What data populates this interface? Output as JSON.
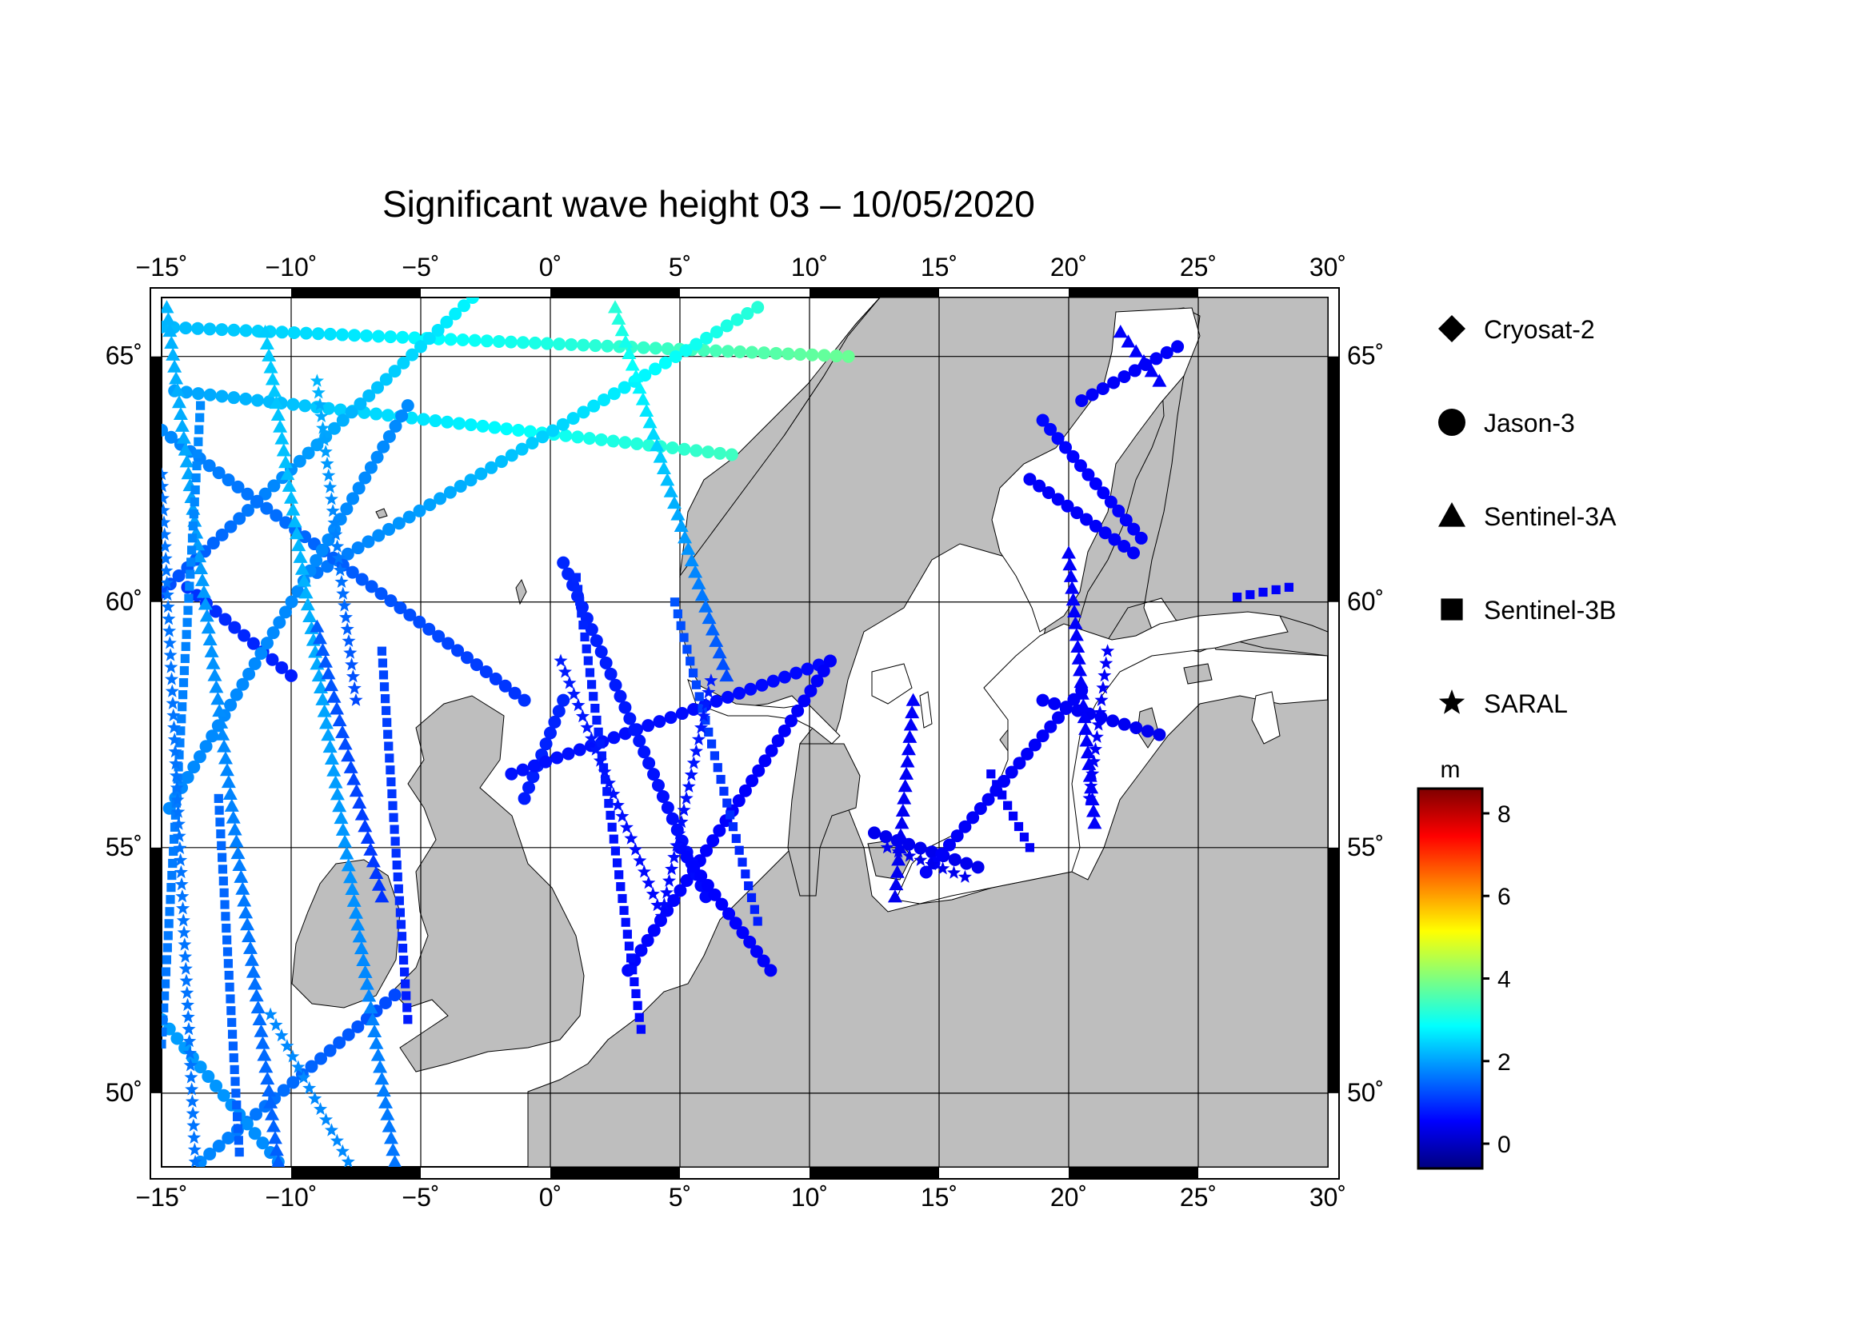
{
  "title": "Significant wave height 03 – 10/05/2020",
  "map": {
    "lon_range": [
      -15,
      30
    ],
    "lat_range": [
      48.5,
      66.2
    ],
    "lon_ticks": [
      "−15˚",
      "−10˚",
      "−5˚",
      "0˚",
      "5˚",
      "10˚",
      "15˚",
      "20˚",
      "25˚",
      "30˚"
    ],
    "lat_ticks": [
      "50˚",
      "55˚",
      "60˚",
      "65˚"
    ],
    "land_color": "#bebebe",
    "sea_color": "#ffffff",
    "grid": true
  },
  "legend": {
    "items": [
      {
        "label": "Cryosat-2",
        "icon": "diamond-icon"
      },
      {
        "label": "Jason-3",
        "icon": "circle-icon"
      },
      {
        "label": "Sentinel-3A",
        "icon": "triangle-icon"
      },
      {
        "label": "Sentinel-3B",
        "icon": "square-icon"
      },
      {
        "label": "SARAL",
        "icon": "star-icon"
      }
    ]
  },
  "colorbar": {
    "unit": "m",
    "range": [
      -0.6,
      8.6
    ],
    "ticks": [
      "0",
      "2",
      "4",
      "6",
      "8"
    ],
    "tick_values": [
      0,
      2,
      4,
      6,
      8
    ],
    "colormap": [
      "#00007f",
      "#0000ff",
      "#007fff",
      "#00ffff",
      "#7fff7f",
      "#ffff00",
      "#ff7f00",
      "#ff0000",
      "#7f0000"
    ]
  },
  "chart_data": {
    "type": "scatter",
    "title": "Significant wave height 03 – 10/05/2020",
    "xlabel": "",
    "ylabel": "",
    "xlim": [
      -15,
      30
    ],
    "ylim": [
      48.5,
      66.2
    ],
    "color_unit": "m",
    "series": [
      {
        "name": "Cryosat-2",
        "marker": "diamond",
        "tracks": []
      },
      {
        "name": "Jason-3",
        "marker": "circle",
        "tracks": [
          {
            "from": [
              -15,
              65.6
            ],
            "to": [
              11.5,
              65.0
            ],
            "h0": 2.2,
            "h1": 3.8
          },
          {
            "from": [
              -14.5,
              64.3
            ],
            "to": [
              7,
              63.0
            ],
            "h0": 2.0,
            "h1": 3.4
          },
          {
            "from": [
              -15,
              60.2
            ],
            "to": [
              -3,
              66.2
            ],
            "h0": 1.2,
            "h1": 2.8
          },
          {
            "from": [
              -9,
              60.6
            ],
            "to": [
              8,
              66.0
            ],
            "h0": 1.6,
            "h1": 3.2
          },
          {
            "from": [
              -15,
              63.5
            ],
            "to": [
              -1,
              58.0
            ],
            "h0": 1.8,
            "h1": 1.0
          },
          {
            "from": [
              -14,
              60.3
            ],
            "to": [
              -10,
              58.5
            ],
            "h0": 1.0,
            "h1": 0.8
          },
          {
            "from": [
              -14.7,
              55.8
            ],
            "to": [
              -5.5,
              64.0
            ],
            "h0": 1.8,
            "h1": 1.8
          },
          {
            "from": [
              -13.5,
              48.6
            ],
            "to": [
              -6,
              52.0
            ],
            "h0": 1.8,
            "h1": 1.2
          },
          {
            "from": [
              -15,
              51.5
            ],
            "to": [
              -10.5,
              48.6
            ],
            "h0": 2.0,
            "h1": 1.8
          },
          {
            "from": [
              0.5,
              58.0
            ],
            "to": [
              -1,
              56.0
            ],
            "h0": 0.9,
            "h1": 0.8
          },
          {
            "from": [
              -1.5,
              56.5
            ],
            "to": [
              10.8,
              58.8
            ],
            "h0": 0.7,
            "h1": 0.6
          },
          {
            "from": [
              3,
              52.5
            ],
            "to": [
              10.8,
              58.8
            ],
            "h0": 0.6,
            "h1": 0.5
          },
          {
            "from": [
              0.5,
              60.8
            ],
            "to": [
              6.0,
              54.0
            ],
            "h0": 0.9,
            "h1": 0.6
          },
          {
            "from": [
              5.0,
              55.0
            ],
            "to": [
              8.5,
              52.5
            ],
            "h0": 0.6,
            "h1": 0.5
          },
          {
            "from": [
              12.5,
              55.3
            ],
            "to": [
              16.5,
              54.6
            ],
            "h0": 0.4,
            "h1": 0.4
          },
          {
            "from": [
              18.5,
              62.5
            ],
            "to": [
              22.5,
              61.0
            ],
            "h0": 0.5,
            "h1": 0.5
          },
          {
            "from": [
              19.0,
              63.7
            ],
            "to": [
              22.8,
              61.3
            ],
            "h0": 0.6,
            "h1": 0.5
          },
          {
            "from": [
              20.5,
              64.1
            ],
            "to": [
              24.2,
              65.2
            ],
            "h0": 0.5,
            "h1": 0.5
          },
          {
            "from": [
              14.5,
              54.5
            ],
            "to": [
              20.5,
              58.2
            ],
            "h0": 0.5,
            "h1": 0.5
          },
          {
            "from": [
              19.0,
              58.0
            ],
            "to": [
              23.5,
              57.3
            ],
            "h0": 0.5,
            "h1": 0.4
          }
        ]
      },
      {
        "name": "Sentinel-3A",
        "marker": "triangle",
        "tracks": [
          {
            "from": [
              -14.8,
              66.0
            ],
            "to": [
              -10.5,
              48.6
            ],
            "h0": 2.2,
            "h1": 1.4
          },
          {
            "from": [
              -11,
              65.5
            ],
            "to": [
              -6,
              48.6
            ],
            "h0": 2.4,
            "h1": 1.6
          },
          {
            "from": [
              -9,
              59.5
            ],
            "to": [
              -6.5,
              54.0
            ],
            "h0": 1.4,
            "h1": 1.0
          },
          {
            "from": [
              2.5,
              66.0
            ],
            "to": [
              6.8,
              58.5
            ],
            "h0": 3.2,
            "h1": 1.2
          },
          {
            "from": [
              14.0,
              58.0
            ],
            "to": [
              13.3,
              54.0
            ],
            "h0": 0.5,
            "h1": 0.4
          },
          {
            "from": [
              20.0,
              61.0
            ],
            "to": [
              21.0,
              55.5
            ],
            "h0": 0.5,
            "h1": 0.5
          },
          {
            "from": [
              22.0,
              65.5
            ],
            "to": [
              23.5,
              64.5
            ],
            "h0": 0.5,
            "h1": 0.5
          }
        ]
      },
      {
        "name": "Sentinel-3B",
        "marker": "square",
        "tracks": [
          {
            "from": [
              -13.5,
              64.0
            ],
            "to": [
              -15,
              51.0
            ],
            "h0": 1.8,
            "h1": 1.6
          },
          {
            "from": [
              -12.8,
              56.0
            ],
            "to": [
              -12.0,
              48.8
            ],
            "h0": 1.5,
            "h1": 1.4
          },
          {
            "from": [
              -6.5,
              59.0
            ],
            "to": [
              -5.5,
              51.5
            ],
            "h0": 1.2,
            "h1": 0.8
          },
          {
            "from": [
              1.0,
              60.5
            ],
            "to": [
              3.5,
              51.3
            ],
            "h0": 0.9,
            "h1": 0.6
          },
          {
            "from": [
              4.8,
              60.0
            ],
            "to": [
              8.0,
              53.5
            ],
            "h0": 1.3,
            "h1": 0.8
          },
          {
            "from": [
              26.5,
              60.1
            ],
            "to": [
              28.5,
              60.3
            ],
            "h0": 0.5,
            "h1": 0.5
          },
          {
            "from": [
              17.0,
              56.5
            ],
            "to": [
              18.5,
              55.0
            ],
            "h0": 0.5,
            "h1": 0.5
          }
        ]
      },
      {
        "name": "SARAL",
        "marker": "star",
        "tracks": [
          {
            "from": [
              -15,
              62.6
            ],
            "to": [
              -13.7,
              48.6
            ],
            "h0": 1.6,
            "h1": 1.6
          },
          {
            "from": [
              -9.0,
              64.5
            ],
            "to": [
              -7.5,
              58.0
            ],
            "h0": 2.2,
            "h1": 1.2
          },
          {
            "from": [
              -10.8,
              51.6
            ],
            "to": [
              -7.8,
              48.6
            ],
            "h0": 1.8,
            "h1": 1.8
          },
          {
            "from": [
              0.4,
              58.8
            ],
            "to": [
              4.3,
              53.6
            ],
            "h0": 0.8,
            "h1": 0.6
          },
          {
            "from": [
              4.3,
              53.6
            ],
            "to": [
              6.2,
              58.4
            ],
            "h0": 0.6,
            "h1": 0.8
          },
          {
            "from": [
              13.0,
              55.0
            ],
            "to": [
              16.0,
              54.4
            ],
            "h0": 0.4,
            "h1": 0.4
          },
          {
            "from": [
              20.8,
              56.0
            ],
            "to": [
              21.5,
              59.0
            ],
            "h0": 0.5,
            "h1": 0.5
          }
        ]
      }
    ]
  }
}
